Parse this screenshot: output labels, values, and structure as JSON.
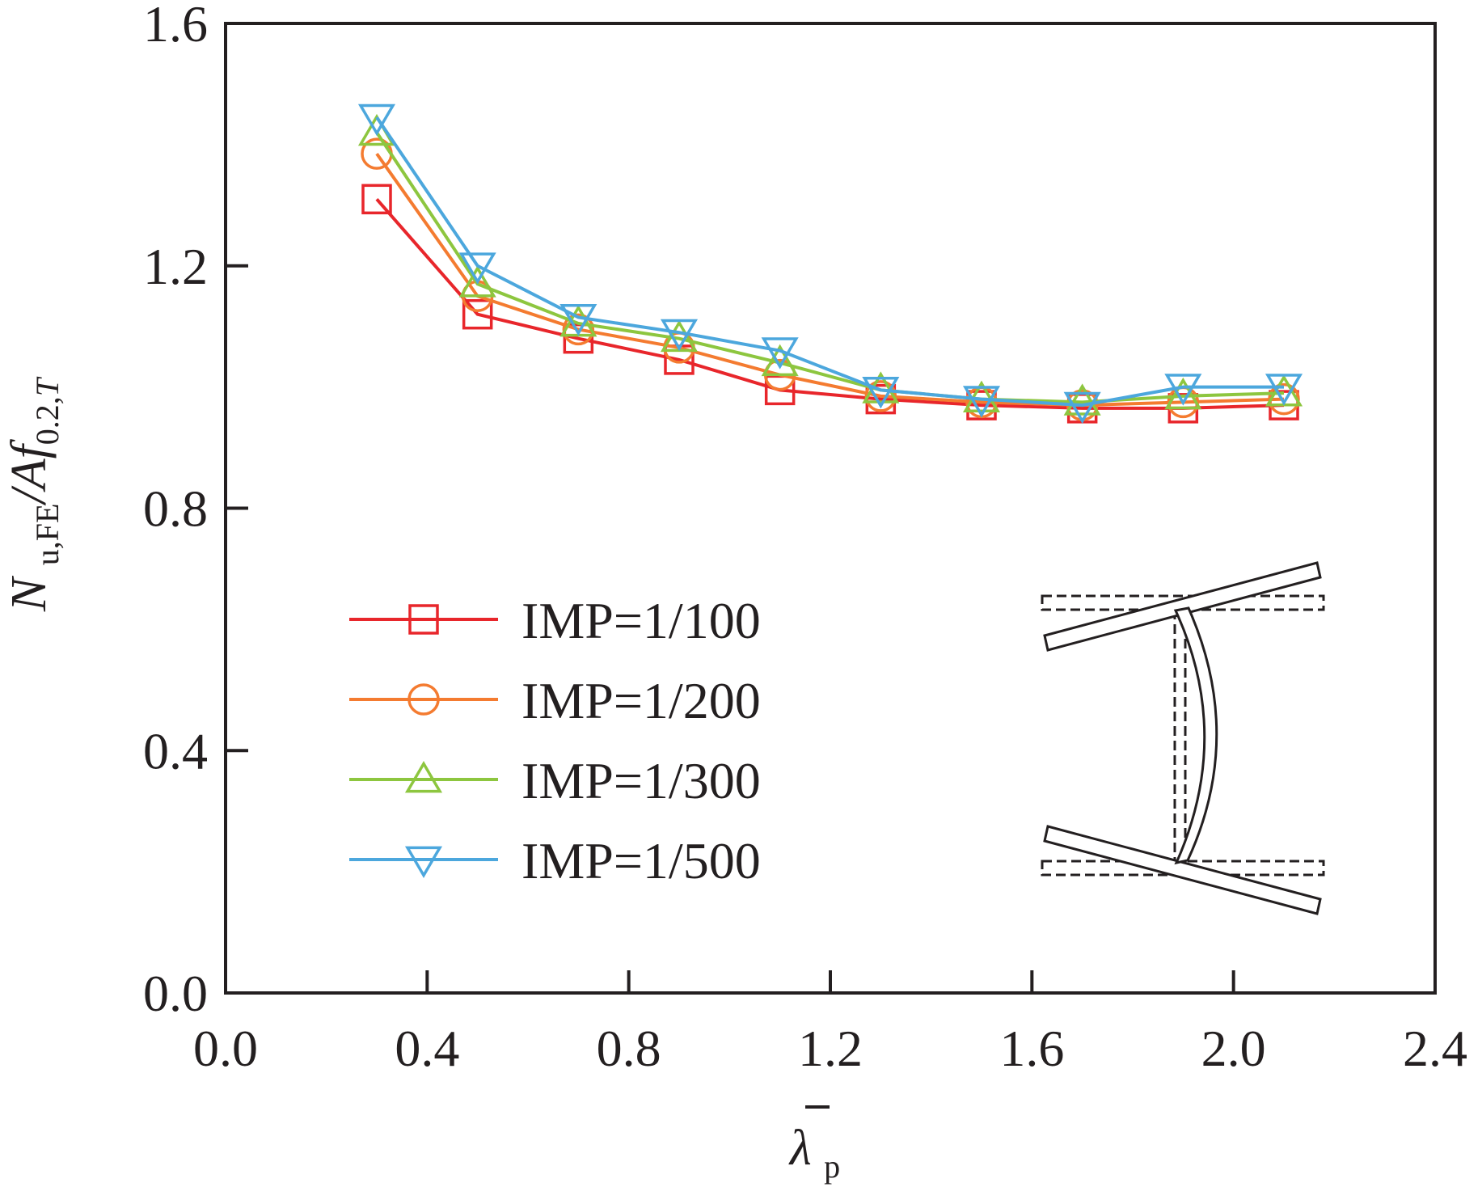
{
  "chart_data": {
    "type": "line",
    "xlabel": "λp",
    "ylabel": "Nu,FE/Af0.2,T",
    "xlim": [
      0.0,
      2.4
    ],
    "ylim": [
      0.0,
      1.6
    ],
    "x_ticks": [
      "0.0",
      "0.4",
      "0.8",
      "1.2",
      "1.6",
      "2.0",
      "2.4"
    ],
    "y_ticks": [
      "0.0",
      "0.4",
      "0.8",
      "1.2",
      "1.6"
    ],
    "x": [
      0.3,
      0.5,
      0.7,
      0.9,
      1.1,
      1.3,
      1.5,
      1.7,
      1.9,
      2.1
    ],
    "series": [
      {
        "name": "IMP=1/100",
        "marker": "square",
        "color": "#e8262b",
        "values": [
          1.31,
          1.12,
          1.08,
          1.045,
          0.995,
          0.98,
          0.97,
          0.965,
          0.965,
          0.97
        ]
      },
      {
        "name": "IMP=1/200",
        "marker": "circle",
        "color": "#f47b30",
        "values": [
          1.385,
          1.15,
          1.095,
          1.065,
          1.02,
          0.985,
          0.975,
          0.97,
          0.975,
          0.98
        ]
      },
      {
        "name": "IMP=1/300",
        "marker": "triangle-up",
        "color": "#8dc63f",
        "values": [
          1.42,
          1.17,
          1.105,
          1.08,
          1.04,
          0.995,
          0.98,
          0.975,
          0.985,
          0.99
        ]
      },
      {
        "name": "IMP=1/500",
        "marker": "triangle-down",
        "color": "#4ca7dd",
        "values": [
          1.445,
          1.2,
          1.115,
          1.09,
          1.06,
          0.995,
          0.98,
          0.97,
          1.0,
          1.0
        ]
      }
    ],
    "legend_position": "lower-left",
    "grid": false,
    "inset": "column deformation sketch"
  }
}
